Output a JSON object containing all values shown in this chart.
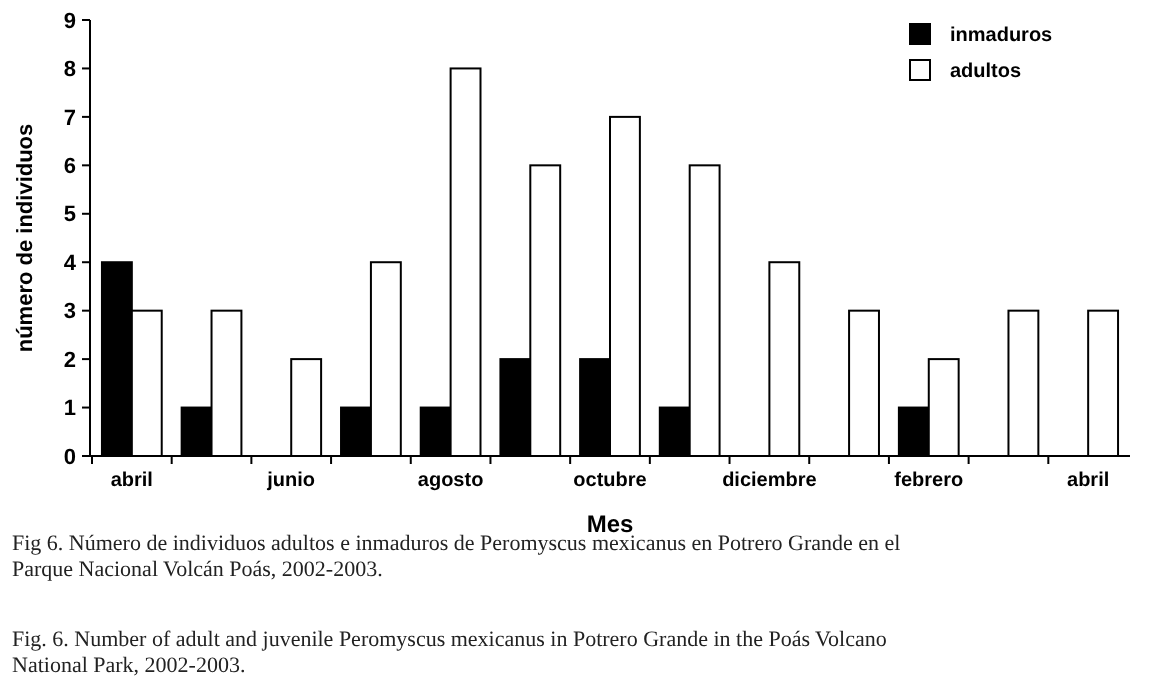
{
  "chart_data": {
    "type": "bar",
    "xlabel": "Mes",
    "ylabel": "número de individuos",
    "categories": [
      "abril",
      null,
      "junio",
      null,
      "agosto",
      null,
      "octubre",
      null,
      "diciembre",
      null,
      "febrero",
      null,
      "abril"
    ],
    "series": [
      {
        "name": "inmaduros",
        "color": "#000000",
        "values": [
          4,
          1,
          0,
          1,
          1,
          2,
          2,
          1,
          0,
          0,
          1,
          0,
          0
        ]
      },
      {
        "name": "adultos",
        "color": "#ffffff",
        "values": [
          3,
          3,
          2,
          4,
          8,
          6,
          7,
          6,
          4,
          3,
          2,
          3,
          3
        ]
      }
    ],
    "ylim": [
      0,
      9
    ],
    "yticks": [
      0,
      1,
      2,
      3,
      4,
      5,
      6,
      7,
      8,
      9
    ],
    "grid": false,
    "legend": "top right",
    "annotations": [
      "Fig 6. Número de individuos adultos e inmaduros de Peromyscus mexicanus en Potrero Grande en el Parque Nacional Volcán Poás, 2002-2003.",
      "Fig. 6. Number of adult and juvenile Peromyscus mexicanus in Potrero Grande in the Poás Volcano National Park, 2002-2003."
    ]
  }
}
